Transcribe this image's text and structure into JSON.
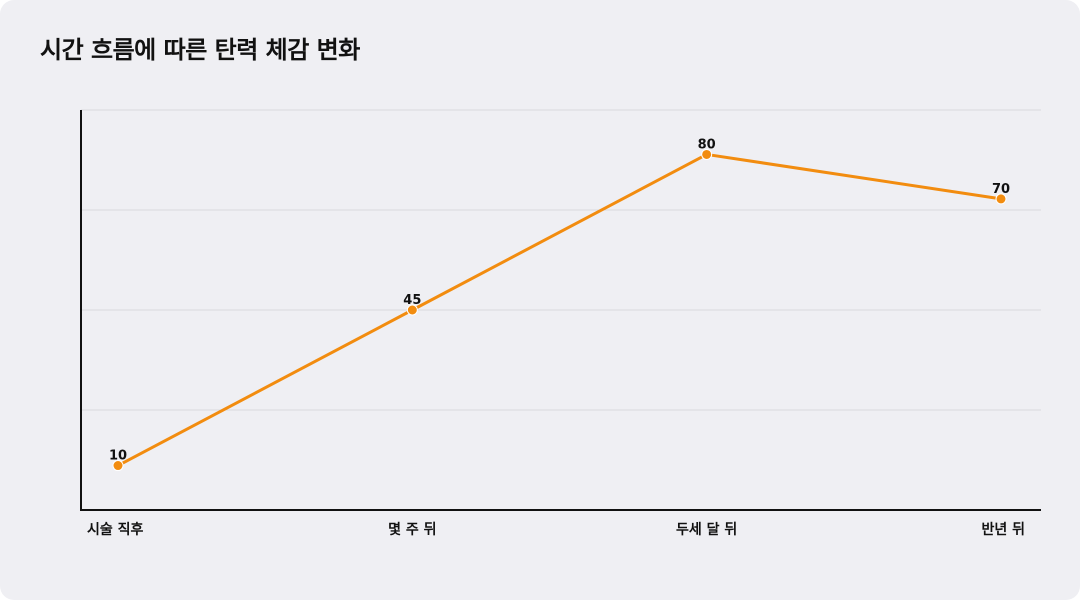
{
  "chart_data": {
    "type": "line",
    "title": "시간 흐름에 따른 탄력 체감 변화",
    "categories": [
      "시술 직후",
      "몇 주 뒤",
      "두세 달 뒤",
      "반년 뒤"
    ],
    "series": [
      {
        "values": [
          10,
          45,
          80,
          70
        ]
      }
    ],
    "ylim": [
      0,
      90
    ],
    "grid": true,
    "show_data_labels": true,
    "show_y_tick_labels": false,
    "legend": "none",
    "colors": {
      "line": "#f28c0f",
      "marker": "#f28c0f",
      "grid": "#d8d8de",
      "axis": "#111111",
      "background": "#efeff3"
    }
  }
}
